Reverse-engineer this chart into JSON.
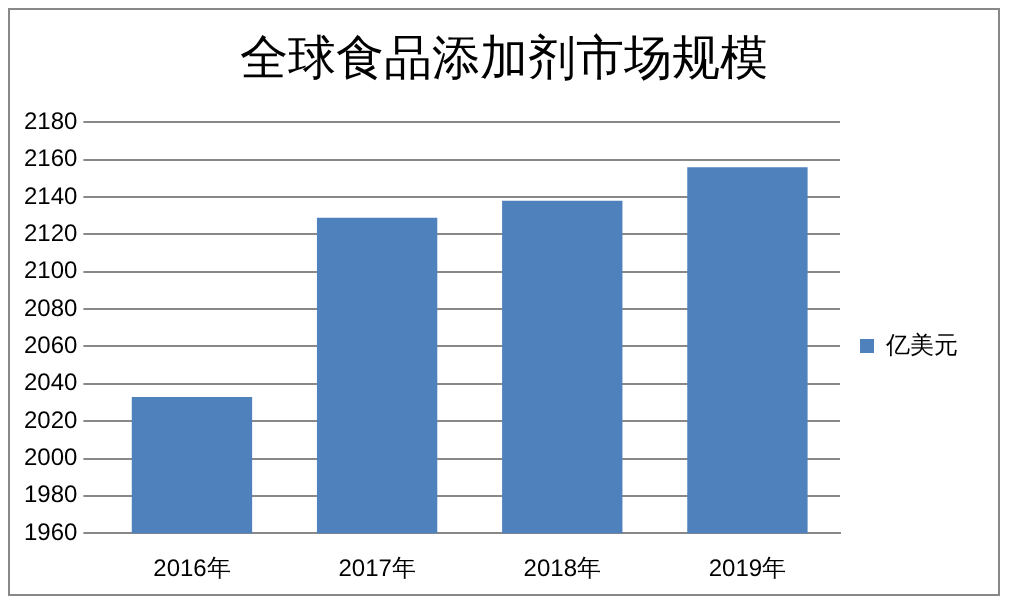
{
  "chart_data": {
    "type": "bar",
    "title": "全球食品添加剂市场规模",
    "categories": [
      "2016年",
      "2017年",
      "2018年",
      "2019年"
    ],
    "series": [
      {
        "name": "亿美元",
        "color": "#4f81bd",
        "values": [
          2033,
          2129,
          2138,
          2156
        ]
      }
    ],
    "ylim": [
      1960,
      2180
    ],
    "yticks": [
      1960,
      1980,
      2000,
      2020,
      2040,
      2060,
      2080,
      2100,
      2120,
      2140,
      2160,
      2180
    ],
    "grid": "y",
    "legend": "right"
  }
}
